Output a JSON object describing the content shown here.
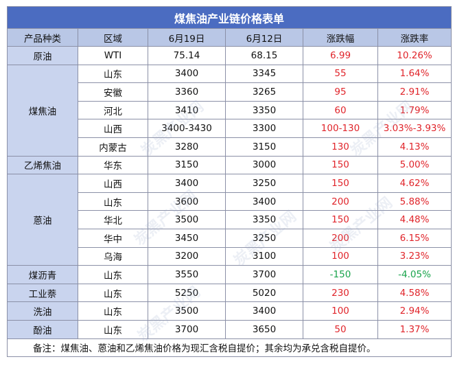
{
  "title": "煤焦油产业链价格表单",
  "headers": [
    "产品种类",
    "区域",
    "6月19日",
    "6月12日",
    "涨跌幅",
    "涨跌率"
  ],
  "groups": [
    {
      "product": "原油",
      "rows": [
        {
          "region": "WTI",
          "p1": "75.14",
          "p2": "68.15",
          "chg": "6.99",
          "rate": "10.26%",
          "dir": "up"
        }
      ]
    },
    {
      "product": "煤焦油",
      "rows": [
        {
          "region": "山东",
          "p1": "3400",
          "p2": "3345",
          "chg": "55",
          "rate": "1.64%",
          "dir": "up"
        },
        {
          "region": "安徽",
          "p1": "3360",
          "p2": "3265",
          "chg": "95",
          "rate": "2.91%",
          "dir": "up"
        },
        {
          "region": "河北",
          "p1": "3410",
          "p2": "3350",
          "chg": "60",
          "rate": "1.79%",
          "dir": "up"
        },
        {
          "region": "山西",
          "p1": "3400-3430",
          "p2": "3300",
          "chg": "100-130",
          "rate": "3.03%-3.93%",
          "dir": "up"
        },
        {
          "region": "内蒙古",
          "p1": "3280",
          "p2": "3150",
          "chg": "130",
          "rate": "4.13%",
          "dir": "up"
        }
      ]
    },
    {
      "product": "乙烯焦油",
      "rows": [
        {
          "region": "华东",
          "p1": "3150",
          "p2": "3000",
          "chg": "150",
          "rate": "5.00%",
          "dir": "up"
        }
      ]
    },
    {
      "product": "蒽油",
      "rows": [
        {
          "region": "山西",
          "p1": "3400",
          "p2": "3250",
          "chg": "150",
          "rate": "4.62%",
          "dir": "up"
        },
        {
          "region": "山东",
          "p1": "3600",
          "p2": "3400",
          "chg": "200",
          "rate": "5.88%",
          "dir": "up"
        },
        {
          "region": "华北",
          "p1": "3500",
          "p2": "3350",
          "chg": "150",
          "rate": "4.48%",
          "dir": "up"
        },
        {
          "region": "华中",
          "p1": "3450",
          "p2": "3250",
          "chg": "200",
          "rate": "6.15%",
          "dir": "up"
        },
        {
          "region": "乌海",
          "p1": "3200",
          "p2": "3100",
          "chg": "100",
          "rate": "3.23%",
          "dir": "up"
        }
      ]
    },
    {
      "product": "煤沥青",
      "rows": [
        {
          "region": "山东",
          "p1": "3550",
          "p2": "3700",
          "chg": "-150",
          "rate": "-4.05%",
          "dir": "down"
        }
      ]
    },
    {
      "product": "工业萘",
      "rows": [
        {
          "region": "山东",
          "p1": "5250",
          "p2": "5020",
          "chg": "230",
          "rate": "4.58%",
          "dir": "up"
        }
      ]
    },
    {
      "product": "洗油",
      "rows": [
        {
          "region": "山东",
          "p1": "3500",
          "p2": "3400",
          "chg": "100",
          "rate": "2.94%",
          "dir": "up"
        }
      ]
    },
    {
      "product": "酚油",
      "rows": [
        {
          "region": "山东",
          "p1": "3700",
          "p2": "3650",
          "chg": "50",
          "rate": "1.37%",
          "dir": "up"
        }
      ]
    }
  ],
  "note": "备注：煤焦油、蒽油和乙烯焦油价格为现汇含税自提价；其余均为承兑含税自提价。",
  "watermark": "炭黑产业网",
  "colors": {
    "title_bg": "#4b6cc1",
    "header_bg": "#b9c7e6",
    "category_bg": "#c9d4ee",
    "up": "#e0242a",
    "down": "#17a34a"
  }
}
